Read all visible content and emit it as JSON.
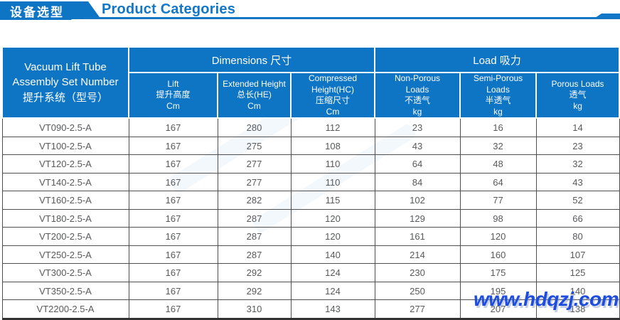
{
  "header": {
    "badge": "设备选型",
    "title": "Product Categories"
  },
  "table": {
    "row_header_label": "Vacuum Lift Tube\nAssembly Set Number\n提升系统（型号）",
    "column_groups": [
      {
        "label": "Dimensions 尺寸"
      },
      {
        "label": "Load 吸力"
      }
    ],
    "columns": [
      {
        "label": "Lift\n提升高度\nCm"
      },
      {
        "label": "Extended Height\n总长(HE)\nCm"
      },
      {
        "label": "Compressed\nHeight(HC)\n压缩尺寸\nCm"
      },
      {
        "label": "Non-Porous\nLoads\n不透气\nkg"
      },
      {
        "label": "Semi-Porous\nLoads\n半透气\nkg"
      },
      {
        "label": "Porous Loads\n透气\nkg"
      }
    ],
    "rows": [
      {
        "model": "VT090-2.5-A",
        "values": [
          "167",
          "280",
          "112",
          "23",
          "16",
          "14"
        ]
      },
      {
        "model": "VT100-2.5-A",
        "values": [
          "167",
          "275",
          "108",
          "43",
          "32",
          "23"
        ]
      },
      {
        "model": "VT120-2.5-A",
        "values": [
          "167",
          "277",
          "110",
          "64",
          "48",
          "32"
        ]
      },
      {
        "model": "VT140-2.5-A",
        "values": [
          "167",
          "277",
          "110",
          "84",
          "64",
          "43"
        ]
      },
      {
        "model": "VT160-2.5-A",
        "values": [
          "167",
          "282",
          "115",
          "102",
          "77",
          "52"
        ]
      },
      {
        "model": "VT180-2.5-A",
        "values": [
          "167",
          "287",
          "120",
          "129",
          "98",
          "66"
        ]
      },
      {
        "model": "VT200-2.5-A",
        "values": [
          "167",
          "287",
          "120",
          "161",
          "120",
          "80"
        ]
      },
      {
        "model": "VT250-2.5-A",
        "values": [
          "167",
          "287",
          "140",
          "214",
          "160",
          "107"
        ]
      },
      {
        "model": "VT300-2.5-A",
        "values": [
          "167",
          "292",
          "124",
          "230",
          "175",
          "125"
        ]
      },
      {
        "model": "VT350-2.5-A",
        "values": [
          "167",
          "292",
          "124",
          "250",
          "195",
          "140"
        ]
      },
      {
        "model": "VT2200-2.5-A",
        "values": [
          "167",
          "310",
          "143",
          "277",
          "207",
          "138"
        ]
      }
    ]
  },
  "watermark": {
    "text": "www.hdqzj.com"
  },
  "colors": {
    "header_blue": "#0e74c4",
    "title_blue": "#1377c8",
    "data_text": "#58595b",
    "site_watermark_blue": "#1d4ce0"
  }
}
